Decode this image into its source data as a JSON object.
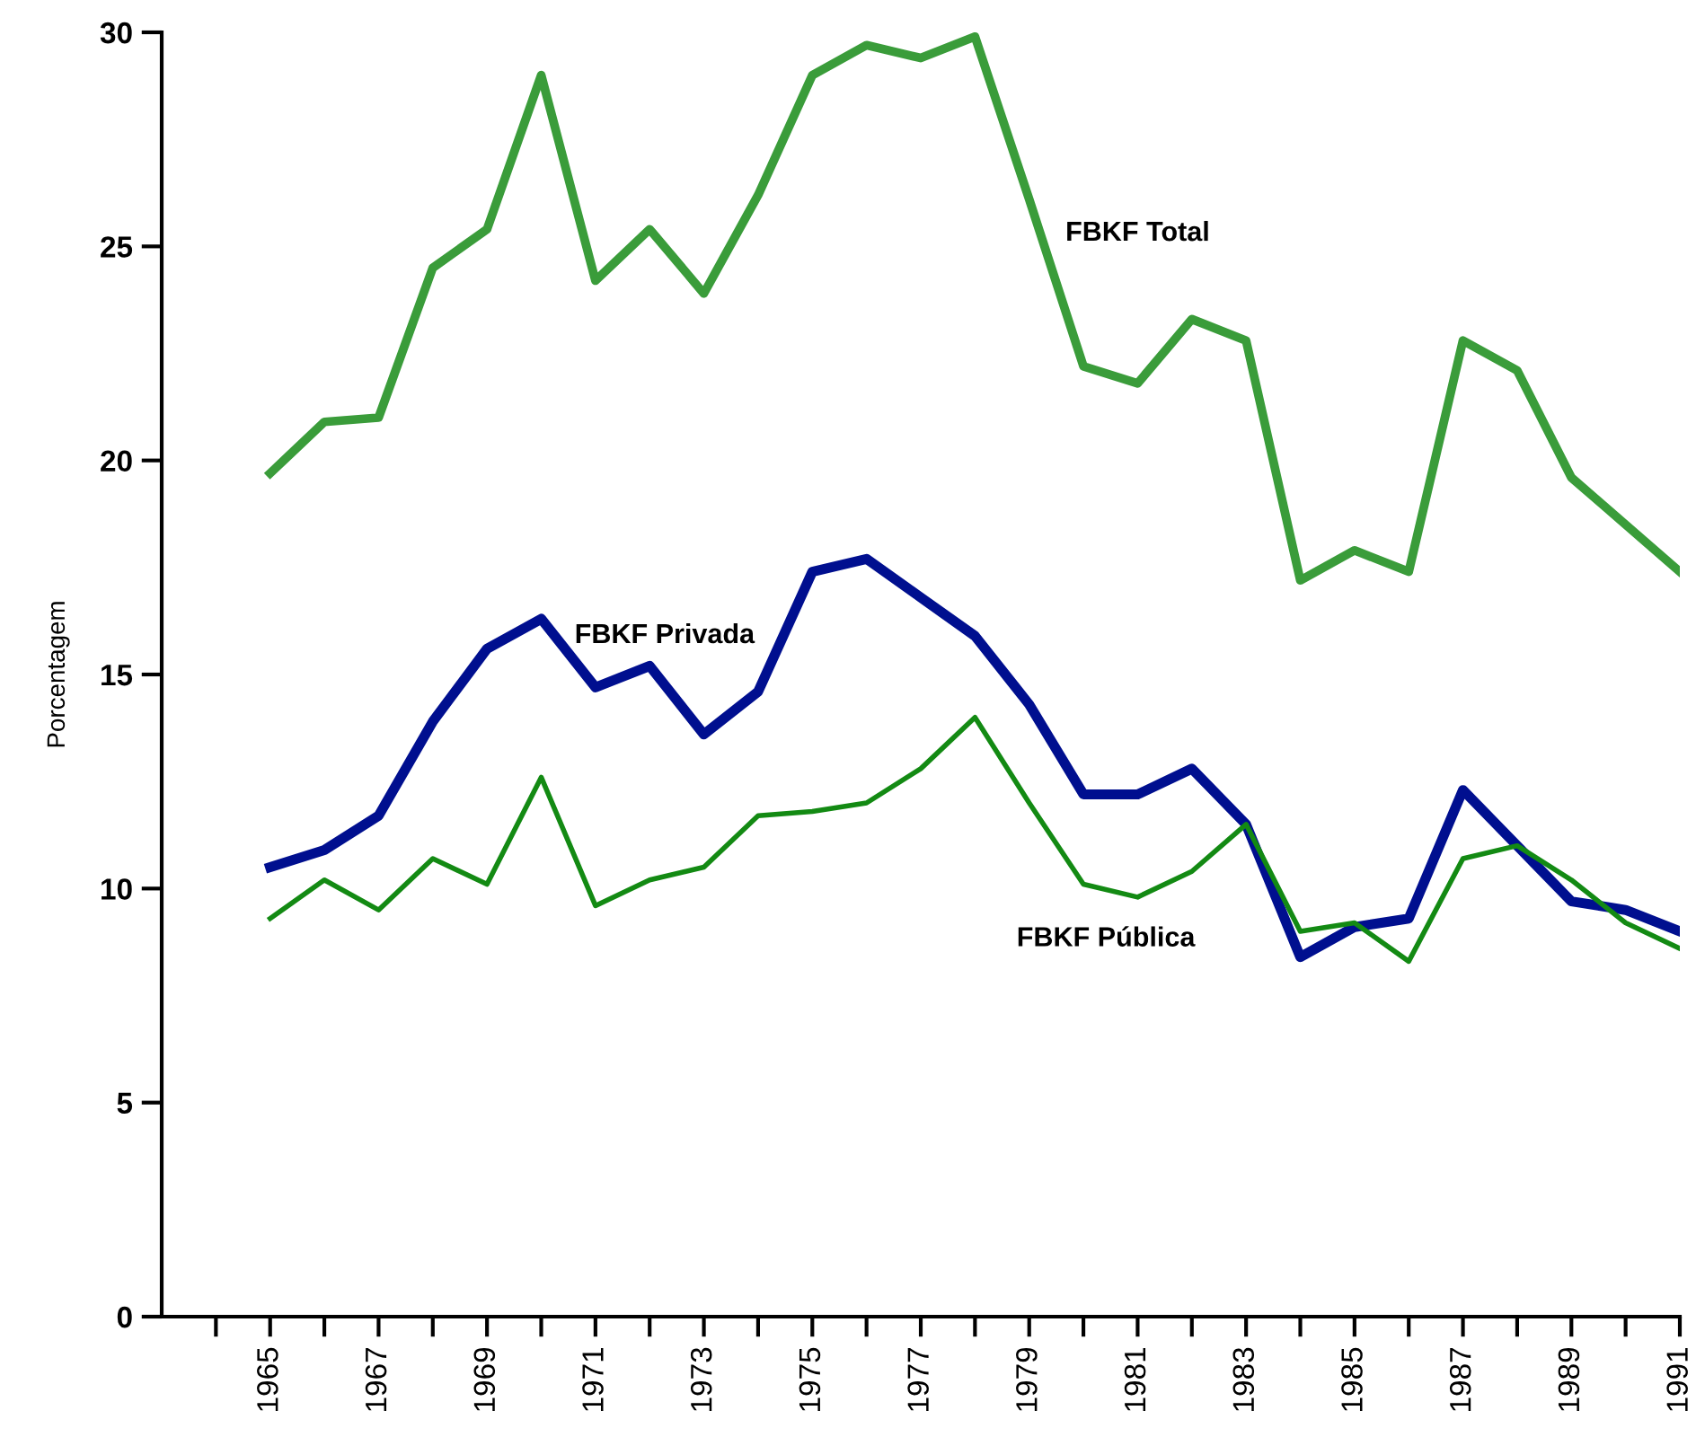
{
  "chart_data": {
    "type": "line",
    "ylabel": "Porcentagem",
    "x": [
      1965,
      1966,
      1967,
      1968,
      1969,
      1970,
      1971,
      1972,
      1973,
      1974,
      1975,
      1976,
      1977,
      1978,
      1979,
      1980,
      1981,
      1982,
      1983,
      1984,
      1985,
      1986,
      1987,
      1988,
      1989,
      1990,
      1991
    ],
    "series": [
      {
        "name": "FBKF Total",
        "color": "#3a9c3a",
        "values": [
          19.7,
          20.9,
          21.0,
          24.5,
          25.4,
          29.0,
          24.2,
          25.4,
          23.9,
          26.2,
          29.0,
          29.7,
          29.4,
          29.9,
          26.1,
          22.2,
          21.8,
          23.3,
          22.8,
          17.2,
          17.9,
          17.4,
          22.8,
          22.1,
          19.6,
          18.5,
          17.4
        ]
      },
      {
        "name": "FBKF Privada",
        "color": "#000f8f",
        "values": [
          10.5,
          10.9,
          11.7,
          13.9,
          15.6,
          16.3,
          14.7,
          15.2,
          13.6,
          14.6,
          17.4,
          17.7,
          16.8,
          15.9,
          14.3,
          12.2,
          12.2,
          12.8,
          11.5,
          8.4,
          9.1,
          9.3,
          12.3,
          11.0,
          9.7,
          9.5,
          9.0
        ]
      },
      {
        "name": "FBKF Pública",
        "color": "#138a13",
        "values": [
          9.3,
          10.2,
          9.5,
          10.7,
          10.1,
          12.6,
          9.6,
          10.2,
          10.5,
          11.7,
          11.8,
          12.0,
          12.8,
          14.0,
          12.0,
          10.1,
          9.8,
          10.4,
          11.5,
          9.0,
          9.2,
          8.3,
          10.7,
          11.0,
          10.2,
          9.2,
          8.6
        ]
      }
    ],
    "xlim": [
      1963,
      1991
    ],
    "xticks": [
      {
        "value": 1964,
        "label": null
      },
      1965,
      {
        "value": 1966,
        "label": null
      },
      1967,
      {
        "value": 1968,
        "label": null
      },
      1969,
      {
        "value": 1970,
        "label": null
      },
      1971,
      {
        "value": 1972,
        "label": null
      },
      1973,
      {
        "value": 1974,
        "label": null
      },
      1975,
      {
        "value": 1976,
        "label": null
      },
      1977,
      {
        "value": 1978,
        "label": null
      },
      1979,
      {
        "value": 1980,
        "label": null
      },
      1981,
      {
        "value": 1982,
        "label": null
      },
      1983,
      {
        "value": 1984,
        "label": null
      },
      1985,
      {
        "value": 1986,
        "label": null
      },
      1987,
      {
        "value": 1988,
        "label": null
      },
      1989,
      {
        "value": 1990,
        "label": null
      },
      1991
    ],
    "ylim": [
      0,
      30
    ],
    "yticks": [
      0,
      5,
      10,
      15,
      20,
      25,
      30
    ],
    "grid": false,
    "legend": false,
    "marker": "none",
    "line_style": "solid"
  }
}
